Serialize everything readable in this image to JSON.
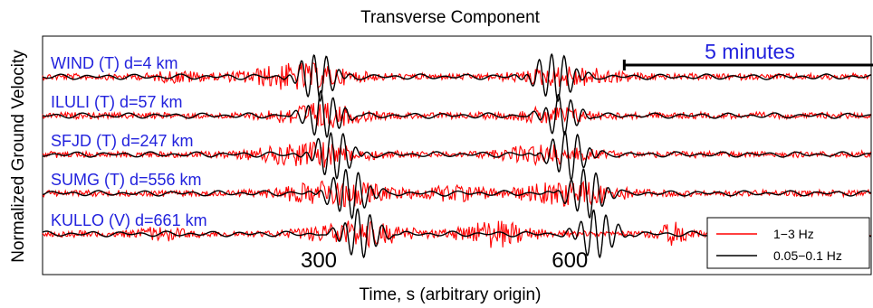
{
  "chart_data": {
    "type": "line",
    "title": "Transverse Component",
    "xlabel": "Time, s (arbitrary origin)",
    "ylabel": "Normalized Ground Velocity",
    "xlim": [
      -30,
      960
    ],
    "x_ticks": [
      300,
      600
    ],
    "scale_bar": {
      "label": "5 minutes",
      "x_start": 665,
      "x_end": 965
    },
    "series": [
      {
        "name": "1−3 Hz",
        "color": "#ff0000"
      },
      {
        "name": "0.05−0.1 Hz",
        "color": "#000000"
      }
    ],
    "legend_position": "bottom-right",
    "traces": [
      {
        "label": "WIND (T)  d=4 km",
        "station": "WIND",
        "component": "T",
        "distance_km": 4,
        "high_freq_bursts": [
          [
            275,
            60,
            1.0
          ],
          [
            600,
            60,
            0.7
          ],
          [
            135,
            30,
            0.35
          ]
        ],
        "low_freq_arrivals": [
          [
            298,
            24,
            1.0
          ],
          [
            582,
            26,
            1.0
          ]
        ]
      },
      {
        "label": "ILULI (T)  d=57 km",
        "station": "ILULI",
        "component": "T",
        "distance_km": 57,
        "high_freq_bursts": [
          [
            300,
            50,
            0.9
          ],
          [
            580,
            40,
            0.6
          ]
        ],
        "low_freq_arrivals": [
          [
            306,
            24,
            0.95
          ],
          [
            590,
            22,
            0.85
          ]
        ]
      },
      {
        "label": "SFJD (T)  d=247 km",
        "station": "SFJD",
        "component": "T",
        "distance_km": 247,
        "high_freq_bursts": [
          [
            290,
            60,
            0.9
          ],
          [
            570,
            50,
            0.7
          ]
        ],
        "low_freq_arrivals": [
          [
            318,
            24,
            1.0
          ],
          [
            598,
            24,
            1.0
          ]
        ]
      },
      {
        "label": "SUMG (T)  d=556 km",
        "station": "SUMG",
        "component": "T",
        "distance_km": 556,
        "high_freq_bursts": [
          [
            320,
            60,
            1.0
          ],
          [
            600,
            60,
            0.9
          ],
          [
            460,
            40,
            0.5
          ]
        ],
        "low_freq_arrivals": [
          [
            336,
            26,
            1.0
          ],
          [
            620,
            24,
            1.0
          ]
        ]
      },
      {
        "label": "KULLO (V)  d=661 km",
        "station": "KULLO",
        "component": "V",
        "distance_km": 661,
        "high_freq_bursts": [
          [
            345,
            60,
            0.9
          ],
          [
            510,
            40,
            1.0
          ],
          [
            725,
            20,
            0.8
          ],
          [
            110,
            30,
            0.4
          ]
        ],
        "low_freq_arrivals": [
          [
            350,
            24,
            1.0
          ],
          [
            632,
            24,
            1.0
          ]
        ]
      }
    ]
  }
}
